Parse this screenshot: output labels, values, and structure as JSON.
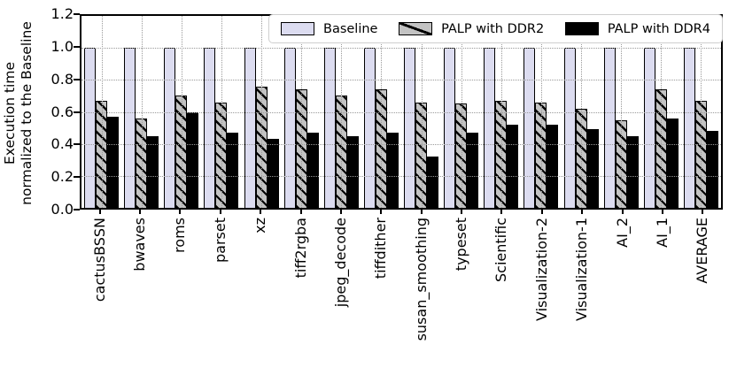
{
  "figure": {
    "colors": {
      "baseline_fill": "#dcdcf0",
      "ddr2_fill": "#c3c3c3",
      "ddr4_fill": "#000000",
      "grid": "#9a9a9a",
      "axis": "#000000",
      "legend_border": "#cfcfcf"
    }
  },
  "chart_data": {
    "type": "bar",
    "title": "",
    "xlabel": "",
    "ylabel_line1": "Execution time",
    "ylabel_line2": "normalized to the Baseline",
    "ylim": [
      0.0,
      1.2
    ],
    "ytick_labels": [
      "1.2",
      "1.0",
      "0.8",
      "0.6",
      "0.4",
      "0.2",
      "0.0"
    ],
    "grid": "dotted, horizontal at 0.2 steps and vertical at each category, drawn over bars",
    "legend_position": "top inside, horizontal row",
    "categories": [
      "cactusBSSN",
      "bwaves",
      "roms",
      "parset",
      "xz",
      "tiff2rgba",
      "jpeg_decode",
      "tiffdither",
      "susan_smoothing",
      "typeset",
      "Scientific",
      "Visualization-2",
      "Visualization-1",
      "AI_2",
      "AI_1",
      "AVERAGE"
    ],
    "series": [
      {
        "name": "Baseline",
        "values": [
          1.0,
          1.0,
          1.0,
          1.0,
          1.0,
          1.0,
          1.0,
          1.0,
          1.0,
          1.0,
          1.0,
          1.0,
          1.0,
          1.0,
          1.0,
          1.0
        ]
      },
      {
        "name": "PALP with DDR2",
        "values": [
          0.67,
          0.56,
          0.7,
          0.66,
          0.76,
          0.74,
          0.7,
          0.74,
          0.66,
          0.65,
          0.67,
          0.66,
          0.62,
          0.55,
          0.74,
          0.67
        ]
      },
      {
        "name": "PALP with DDR4",
        "values": [
          0.57,
          0.45,
          0.6,
          0.47,
          0.43,
          0.47,
          0.45,
          0.47,
          0.32,
          0.47,
          0.52,
          0.52,
          0.49,
          0.45,
          0.56,
          0.48
        ]
      }
    ]
  }
}
